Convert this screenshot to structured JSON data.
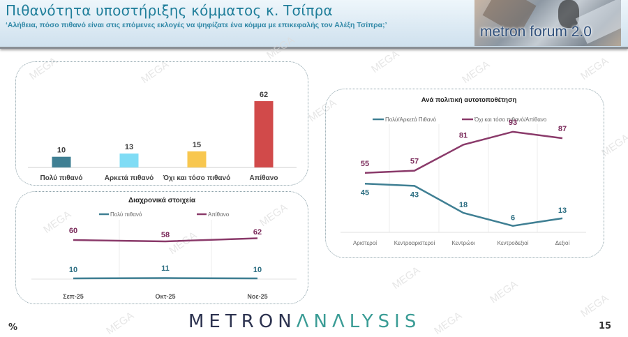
{
  "header": {
    "title": "Πιθανότητα υποστήριξης κόμματος κ. Τσίπρα",
    "subtitle": "‘Αλήθεια, πόσο πιθανό είναι στις επόμενες εκλογές να ψηφίζατε ένα κόμμα με επικεφαλής τον Αλέξη Τσίπρα;’",
    "logo_text": "metron forum 2.0"
  },
  "footer": {
    "brand_part1": "METRON",
    "brand_part2": "ΛNΛLYSIS",
    "unit": "%",
    "page_number": "15"
  },
  "watermark": "MEGA",
  "chart_data": [
    {
      "type": "bar",
      "title": "",
      "categories": [
        "Πολύ πιθανό",
        "Αρκετά πιθανό",
        "Όχι και τόσο πιθανό",
        "Απίθανο"
      ],
      "values": [
        10,
        13,
        15,
        62
      ],
      "colors": [
        "#3f7f93",
        "#7fdcf5",
        "#f8c74f",
        "#d14a4a"
      ],
      "xlabel": "",
      "ylabel": "",
      "ylim": [
        0,
        70
      ],
      "grid": false
    },
    {
      "type": "line",
      "title": "Διαχρονικά στοιχεία",
      "categories": [
        "Σεπ-25",
        "Οκτ-25",
        "Νοε-25"
      ],
      "series": [
        {
          "name": "Πολύ πιθανό",
          "values": [
            10,
            11,
            10
          ],
          "color": "#3f7f93"
        },
        {
          "name": "Απίθανο",
          "values": [
            60,
            58,
            62
          ],
          "color": "#8a3a6a"
        }
      ],
      "legend_position": "top",
      "ylim": [
        0,
        70
      ],
      "grid": true
    },
    {
      "type": "line",
      "title": "Ανά πολιτική αυτοτοποθέτηση",
      "categories": [
        "Αριστεροί",
        "Κεντροαριστεροί",
        "Κεντρώοι",
        "Κεντροδεξιοί",
        "Δεξιοί"
      ],
      "series": [
        {
          "name": "Πολύ/Αρκετά Πιθανό",
          "values": [
            45,
            43,
            18,
            6,
            13
          ],
          "color": "#3f7f93"
        },
        {
          "name": "Όχι και τόσο πιθανό/Απίθανο",
          "values": [
            55,
            57,
            81,
            93,
            87
          ],
          "color": "#8a3a6a"
        }
      ],
      "legend_position": "top",
      "ylim": [
        0,
        100
      ],
      "grid": true
    }
  ]
}
